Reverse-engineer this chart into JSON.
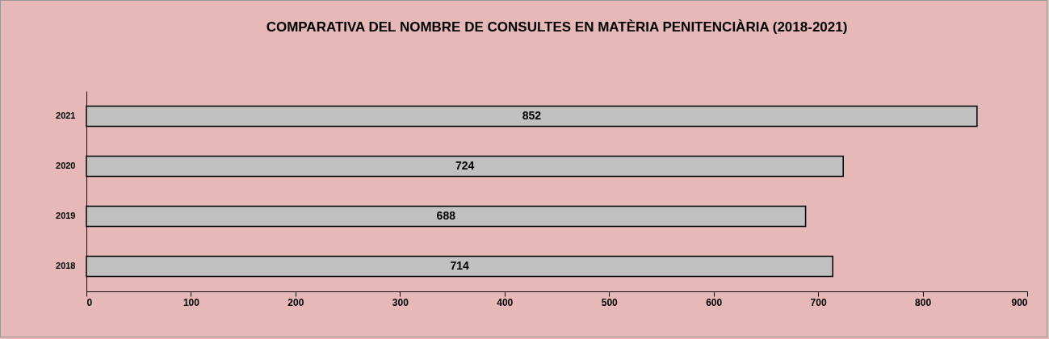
{
  "chart_data": {
    "type": "bar",
    "orientation": "horizontal",
    "title": "COMPARATIVA DEL NOMBRE DE CONSULTES EN MATÈRIA PENITENCIÀRIA (2018-2021)",
    "categories": [
      "2021",
      "2020",
      "2019",
      "2018"
    ],
    "values": [
      852,
      724,
      688,
      714
    ],
    "color": "#c0c0c0",
    "data_labels": true,
    "xlim": [
      0,
      900
    ],
    "xticks": [
      0,
      100,
      200,
      300,
      400,
      500,
      600,
      700,
      800,
      900
    ],
    "grid": false
  }
}
